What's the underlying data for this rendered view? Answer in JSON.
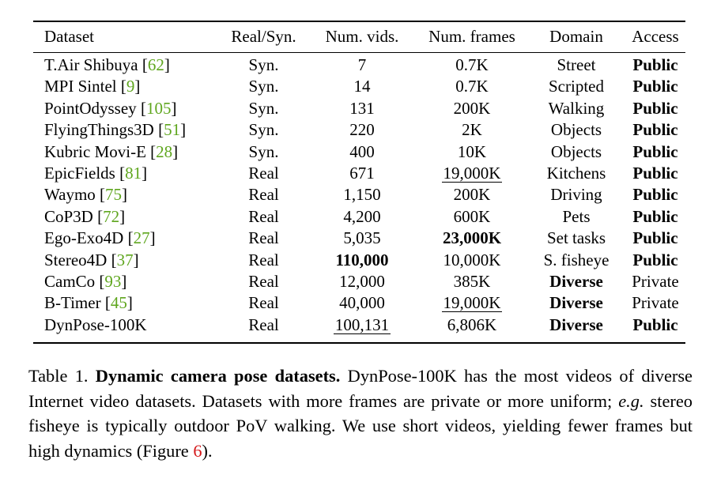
{
  "table": {
    "headers": [
      "Dataset",
      "Real/Syn.",
      "Num. vids.",
      "Num. frames",
      "Domain",
      "Access"
    ],
    "rows": [
      {
        "name": "T.Air Shibuya",
        "ref": "62",
        "real": "Syn.",
        "vids": "7",
        "frames": "0.7K",
        "domain": "Street",
        "access": "Public"
      },
      {
        "name": "MPI Sintel",
        "ref": "9",
        "real": "Syn.",
        "vids": "14",
        "frames": "0.7K",
        "domain": "Scripted",
        "access": "Public"
      },
      {
        "name": "PointOdyssey",
        "ref": "105",
        "real": "Syn.",
        "vids": "131",
        "frames": "200K",
        "domain": "Walking",
        "access": "Public"
      },
      {
        "name": "FlyingThings3D",
        "ref": "51",
        "real": "Syn.",
        "vids": "220",
        "frames": "2K",
        "domain": "Objects",
        "access": "Public"
      },
      {
        "name": "Kubric Movi-E",
        "ref": "28",
        "real": "Syn.",
        "vids": "400",
        "frames": "10K",
        "domain": "Objects",
        "access": "Public"
      },
      {
        "name": "EpicFields",
        "ref": "81",
        "real": "Real",
        "vids": "671",
        "frames": "19,000K",
        "domain": "Kitchens",
        "access": "Public"
      },
      {
        "name": "Waymo",
        "ref": "75",
        "real": "Real",
        "vids": "1,150",
        "frames": "200K",
        "domain": "Driving",
        "access": "Public"
      },
      {
        "name": "CoP3D",
        "ref": "72",
        "real": "Real",
        "vids": "4,200",
        "frames": "600K",
        "domain": "Pets",
        "access": "Public"
      },
      {
        "name": "Ego-Exo4D",
        "ref": "27",
        "real": "Real",
        "vids": "5,035",
        "frames": "23,000K",
        "domain": "Set tasks",
        "access": "Public"
      },
      {
        "name": "Stereo4D",
        "ref": "37",
        "real": "Real",
        "vids": "110,000",
        "frames": "10,000K",
        "domain": "S. fisheye",
        "access": "Public"
      },
      {
        "name": "CamCo",
        "ref": "93",
        "real": "Real",
        "vids": "12,000",
        "frames": "385K",
        "domain": "Diverse",
        "access": "Private"
      },
      {
        "name": "B-Timer",
        "ref": "45",
        "real": "Real",
        "vids": "40,000",
        "frames": "19,000K",
        "domain": "Diverse",
        "access": "Private"
      },
      {
        "name": "DynPose-100K",
        "ref": "",
        "real": "Real",
        "vids": "100,131",
        "frames": "6,806K",
        "domain": "Diverse",
        "access": "Public"
      }
    ]
  },
  "caption": {
    "label": "Table 1.",
    "title": "Dynamic camera pose datasets.",
    "text1": "DynPose-100K has the most videos of diverse Internet video datasets. Datasets with more frames are private or more uniform;",
    "eg": "e.g.",
    "text2": "stereo fisheye is typically outdoor PoV walking.  We use short videos, yielding fewer frames but high dynamics (Figure",
    "fig_ref": "6",
    "text3": ")."
  }
}
